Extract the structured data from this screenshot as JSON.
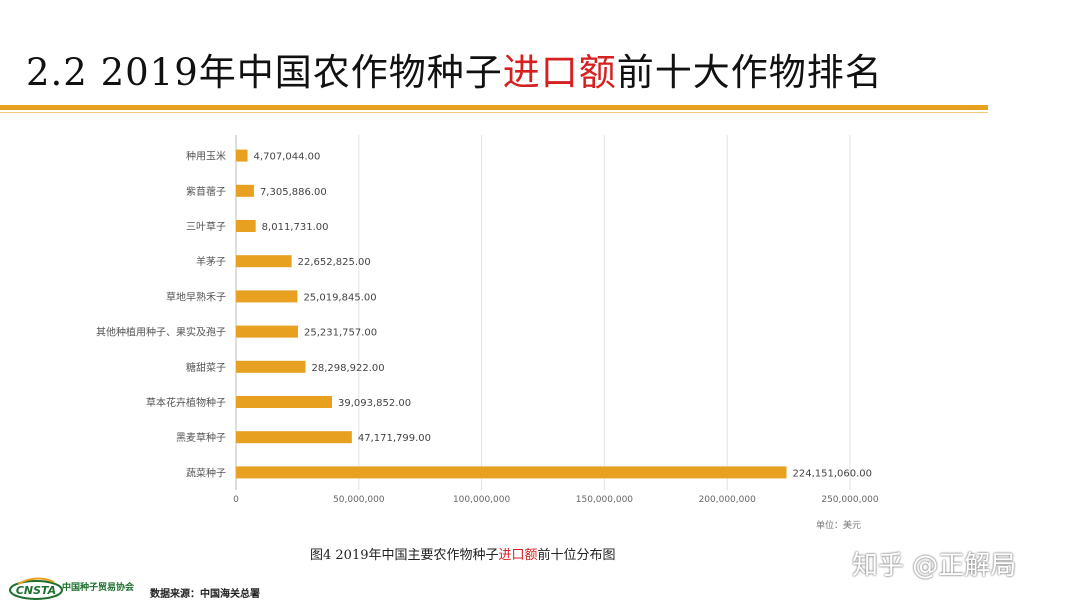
{
  "slide": {
    "title_prefix": "2.2  2019年中国农作物种子",
    "title_highlight": "进口额",
    "title_suffix": "前十大作物排名",
    "unit_label": "单位：美元",
    "caption_prefix": "图4  2019年中国主要农作物种子",
    "caption_highlight": "进口额",
    "caption_suffix": "前十位分布图",
    "watermark": "知乎 @正解局",
    "org_name": "中国种子贸易协会",
    "logo_text": "CNSTA",
    "source": "数据来源：中国海关总署"
  },
  "colors": {
    "bar": "#e8a020",
    "accent": "#d62020",
    "rule": "#e8a020",
    "grid": "#e2e2e2"
  },
  "chart_data": {
    "type": "bar",
    "orientation": "horizontal",
    "categories": [
      "种用玉米",
      "紫苜蓿子",
      "三叶草子",
      "羊茅子",
      "草地早熟禾子",
      "其他种植用种子、果实及孢子",
      "糖甜菜子",
      "草本花卉植物种子",
      "黑麦草种子",
      "蔬菜种子"
    ],
    "values": [
      4707044.0,
      7305886.0,
      8011731.0,
      22652825.0,
      25019845.0,
      25231757.0,
      28298922.0,
      39093852.0,
      47171799.0,
      224151060.0
    ],
    "value_labels": [
      "4,707,044.00",
      "7,305,886.00",
      "8,011,731.00",
      "22,652,825.00",
      "25,019,845.00",
      "25,231,757.00",
      "28,298,922.00",
      "39,093,852.00",
      "47,171,799.00",
      "224,151,060.00"
    ],
    "xlim": [
      0,
      250000000
    ],
    "xticks": [
      0,
      50000000,
      100000000,
      150000000,
      200000000,
      250000000
    ],
    "xtick_labels": [
      "0",
      "50,000,000",
      "100,000,000",
      "150,000,000",
      "200,000,000",
      "250,000,000"
    ],
    "grid": true,
    "legend": "none"
  }
}
